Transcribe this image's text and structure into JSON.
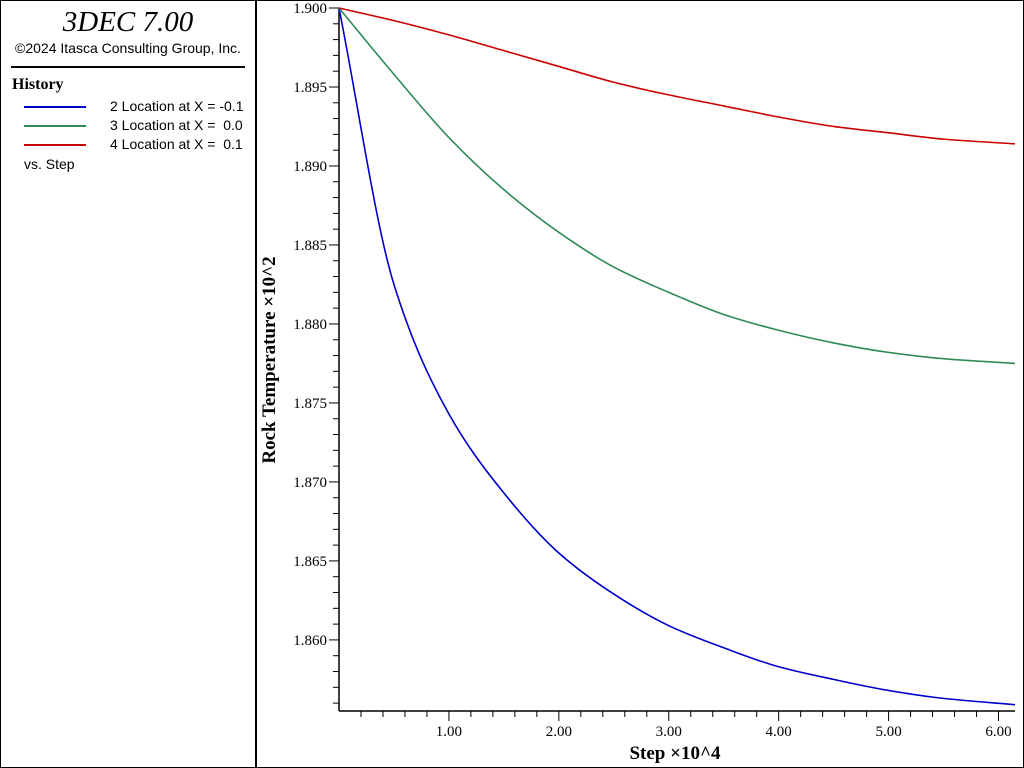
{
  "app": {
    "title": "3DEC 7.00",
    "copyright": "©2024 Itasca Consulting Group, Inc."
  },
  "legend": {
    "heading": "History",
    "items": [
      {
        "label": "2 Location at X = -0.1",
        "color": "#0000cc"
      },
      {
        "label": "3 Location at X =  0.0",
        "color": "#2e8b57"
      },
      {
        "label": "4 Location at X =  0.1",
        "color": "#cc0000"
      }
    ],
    "vs": "vs. Step"
  },
  "chart_data": {
    "type": "line",
    "xlabel": "Step ×10^4",
    "ylabel": "Rock Temperature ×10^2",
    "xlim": [
      0.0,
      6.15
    ],
    "ylim": [
      1.8555,
      1.9
    ],
    "xticks": [
      "1.00",
      "2.00",
      "3.00",
      "4.00",
      "5.00",
      "6.00"
    ],
    "yticks": [
      "1.860",
      "1.865",
      "1.870",
      "1.875",
      "1.880",
      "1.885",
      "1.890",
      "1.895",
      "1.900"
    ],
    "grid": false,
    "legend_position": "left-panel",
    "x": [
      0.0,
      0.5,
      1.0,
      1.5,
      2.0,
      2.5,
      3.0,
      3.5,
      4.0,
      4.5,
      5.0,
      5.5,
      6.15
    ],
    "series": [
      {
        "name": "2 Location at X = -0.1",
        "color": "#0000cc",
        "values": [
          1.9,
          1.8825,
          1.8743,
          1.8693,
          1.8655,
          1.8629,
          1.8609,
          1.8595,
          1.8583,
          1.8575,
          1.8568,
          1.8563,
          1.8559
        ]
      },
      {
        "name": "3 Location at X =  0.0",
        "color": "#2e8b57",
        "values": [
          1.9,
          1.8958,
          1.8918,
          1.8885,
          1.8858,
          1.8836,
          1.882,
          1.8806,
          1.8796,
          1.8788,
          1.8782,
          1.8778,
          1.8775
        ]
      },
      {
        "name": "4 Location at X =  0.1",
        "color": "#cc0000",
        "values": [
          1.9,
          1.8992,
          1.8983,
          1.8973,
          1.8963,
          1.8953,
          1.8945,
          1.8938,
          1.8931,
          1.8925,
          1.8921,
          1.8917,
          1.8914
        ]
      }
    ]
  }
}
